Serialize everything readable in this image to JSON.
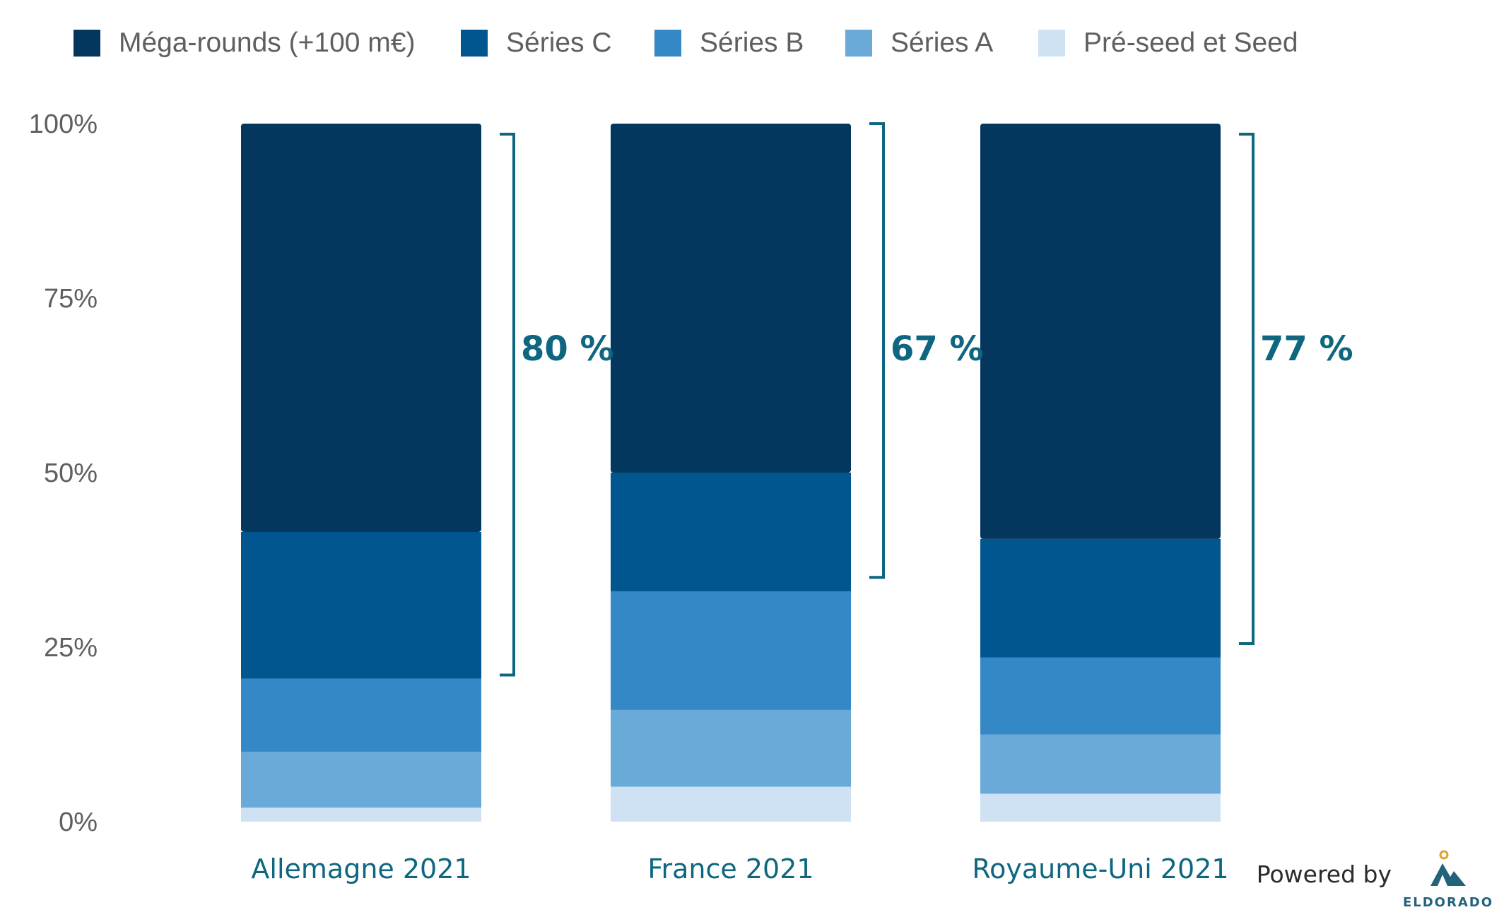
{
  "chart_data": {
    "type": "bar",
    "stacked": true,
    "normalized": true,
    "categories": [
      "Allemagne 2021",
      "France 2021",
      "Royaume-Uni 2021"
    ],
    "series": [
      {
        "name": "Pré-seed et Seed",
        "color": "#cfe2f3",
        "values": [
          2,
          5,
          4
        ]
      },
      {
        "name": "Séries A",
        "color": "#6aaad9",
        "values": [
          8,
          11,
          8.5
        ]
      },
      {
        "name": "Séries B",
        "color": "#3588c6",
        "values": [
          10.5,
          17,
          11
        ]
      },
      {
        "name": "Séries C",
        "color": "#02568f",
        "values": [
          21,
          17,
          17
        ]
      },
      {
        "name": "Méga-rounds (+100 m€)",
        "color": "#03375e",
        "values": [
          58.5,
          50,
          59.5
        ]
      }
    ],
    "legend_order": [
      "Méga-rounds (+100 m€)",
      "Séries C",
      "Séries B",
      "Séries A",
      "Pré-seed et Seed"
    ],
    "y_ticks": [
      "0%",
      "25%",
      "50%",
      "75%",
      "100%"
    ],
    "y_tick_values": [
      0,
      25,
      50,
      75,
      100
    ],
    "ylim": [
      0,
      100
    ],
    "brackets": [
      {
        "label": "80 %",
        "from": 21,
        "to": 98.5
      },
      {
        "label": "67 %",
        "from": 35,
        "to": 100
      },
      {
        "label": "77 %",
        "from": 25.5,
        "to": 98.5
      }
    ],
    "bracket_color": "#0e6680",
    "category_label_color": "#0e6680",
    "legend_position": "top",
    "grid": false
  },
  "footer": {
    "powered_by": "Powered by",
    "brand": "ELDORADO",
    "logo_icon": "mountain-sun-icon"
  }
}
